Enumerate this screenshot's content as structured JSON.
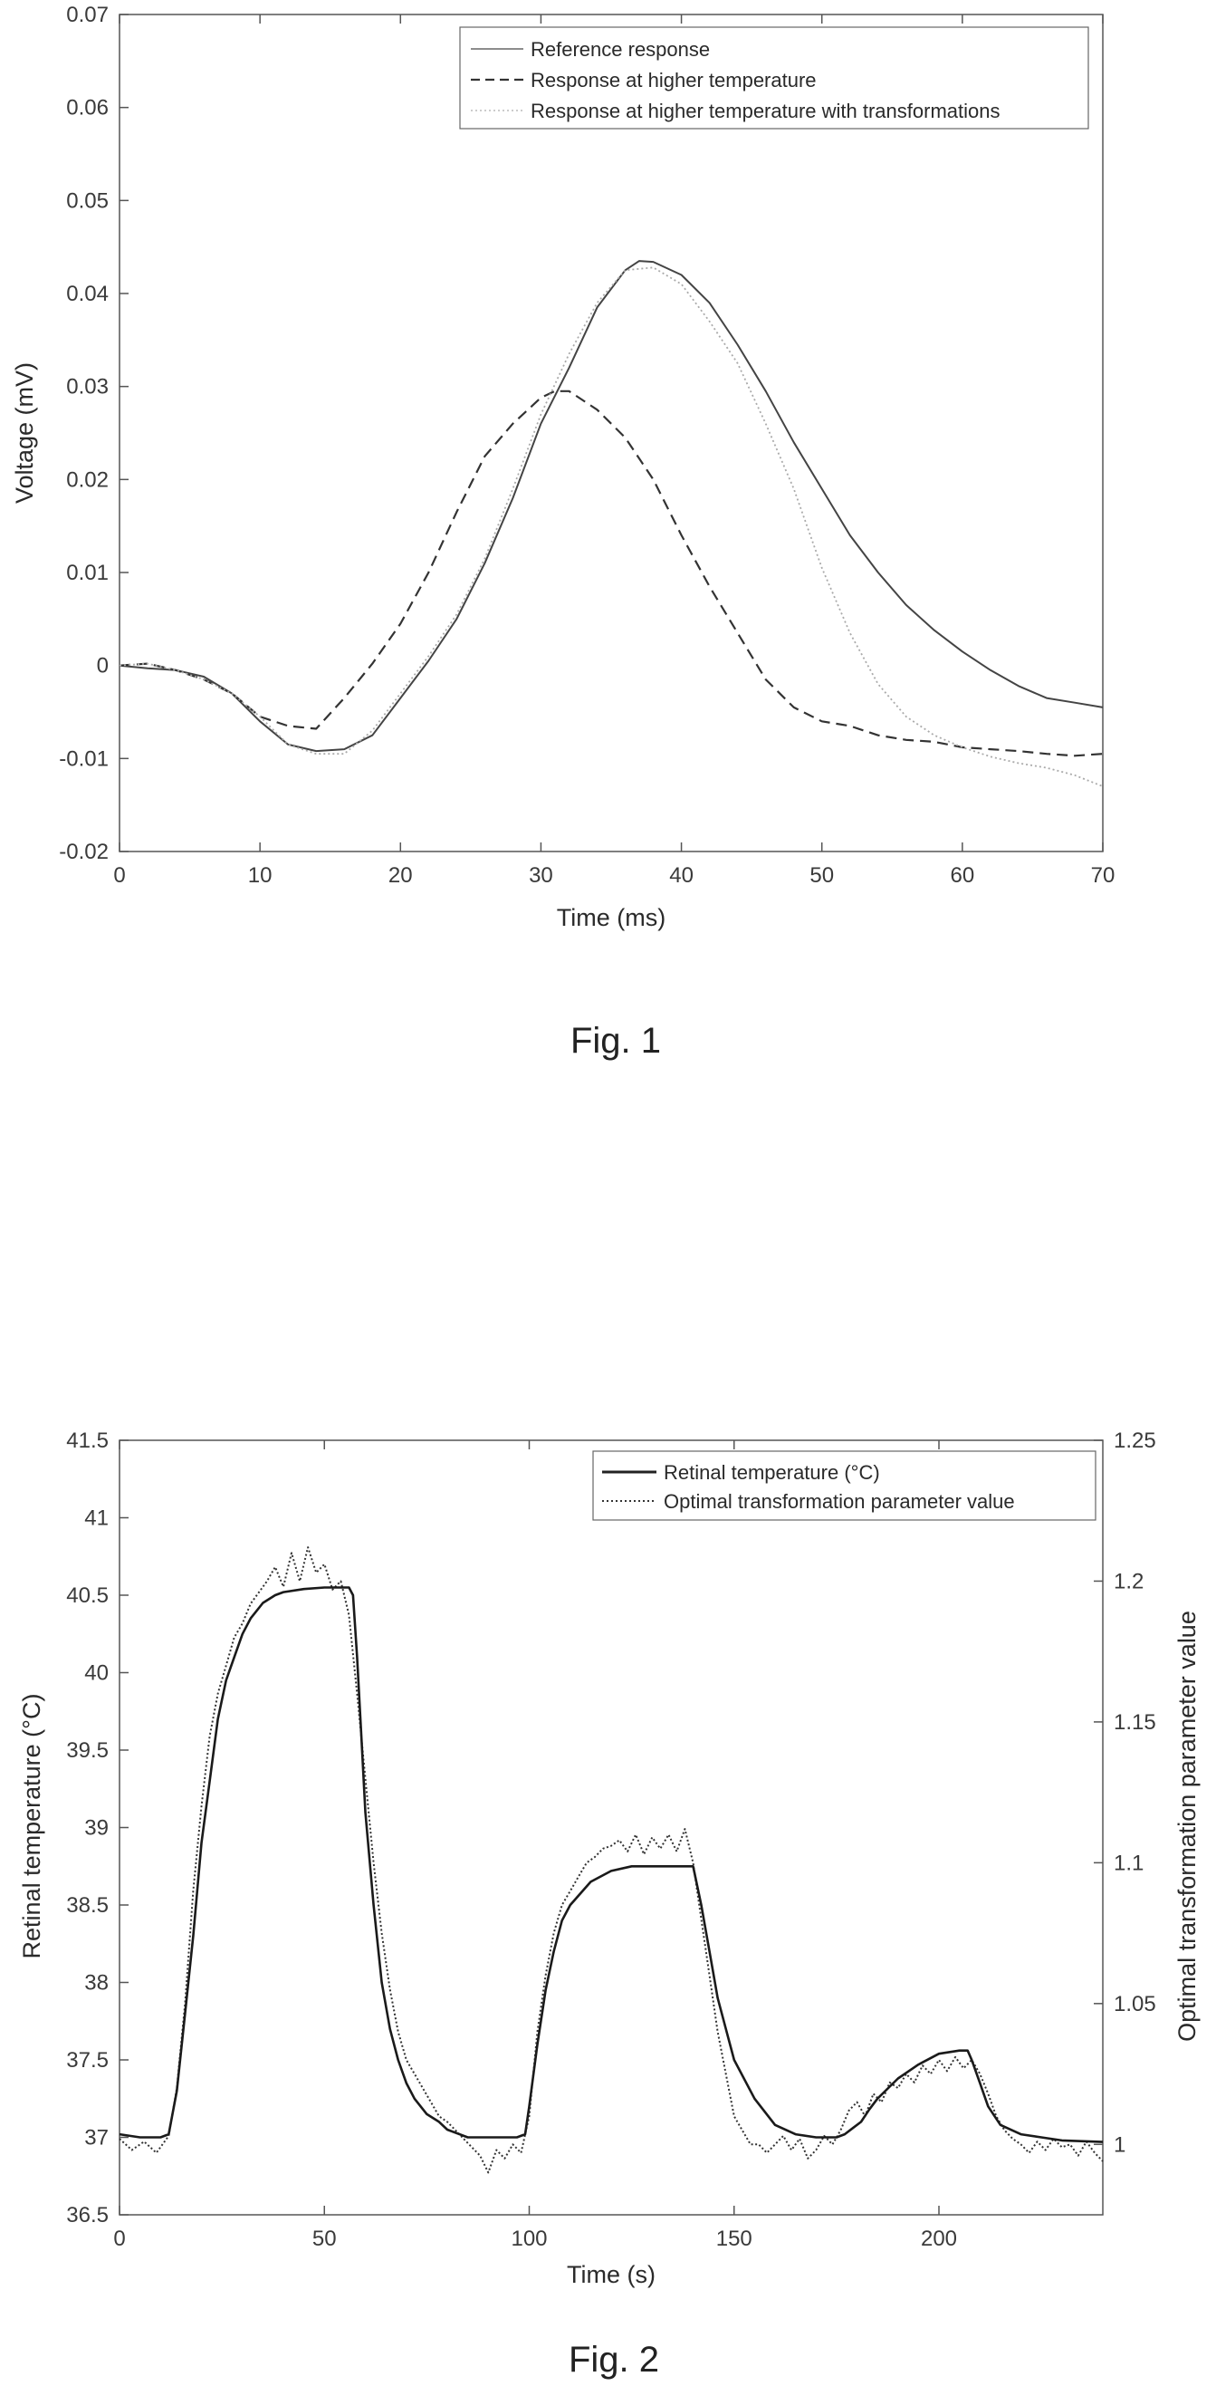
{
  "chart_data": [
    {
      "type": "line",
      "caption": "Fig. 1",
      "xlabel": "Time (ms)",
      "ylabel": "Voltage (mV)",
      "xlim": [
        0,
        70
      ],
      "ylim": [
        -0.02,
        0.07
      ],
      "xticks": [
        "0",
        "10",
        "20",
        "30",
        "40",
        "50",
        "60",
        "70"
      ],
      "yticks": [
        "-0.02",
        "-0.01",
        "0",
        "0.01",
        "0.02",
        "0.03",
        "0.04",
        "0.05",
        "0.06",
        "0.07"
      ],
      "legend_position": "top-right",
      "grid": false,
      "series": [
        {
          "name": "Reference response",
          "style": "solid",
          "x": [
            0,
            2,
            4,
            6,
            8,
            10,
            12,
            14,
            16,
            18,
            20,
            22,
            24,
            26,
            28,
            30,
            32,
            34,
            36,
            37,
            38,
            40,
            42,
            44,
            46,
            48,
            50,
            52,
            54,
            56,
            58,
            60,
            62,
            64,
            66,
            68,
            70
          ],
          "y": [
            0,
            -0.0003,
            -0.0005,
            -0.0012,
            -0.003,
            -0.006,
            -0.0085,
            -0.0092,
            -0.009,
            -0.0075,
            -0.0035,
            0.0005,
            0.005,
            0.011,
            0.018,
            0.026,
            0.032,
            0.0385,
            0.0425,
            0.0435,
            0.0434,
            0.042,
            0.039,
            0.0345,
            0.0295,
            0.024,
            0.019,
            0.014,
            0.01,
            0.0065,
            0.0038,
            0.0015,
            -0.0005,
            -0.0022,
            -0.0035,
            -0.004,
            -0.0045
          ]
        },
        {
          "name": "Response at higher temperature",
          "style": "dashed",
          "x": [
            0,
            2,
            4,
            6,
            8,
            10,
            12,
            14,
            16,
            18,
            20,
            22,
            24,
            26,
            28,
            30,
            31,
            32,
            34,
            36,
            38,
            40,
            42,
            44,
            46,
            48,
            50,
            52,
            54,
            56,
            58,
            60,
            62,
            64,
            66,
            68,
            70
          ],
          "y": [
            0,
            0.0002,
            -0.0005,
            -0.0015,
            -0.003,
            -0.0055,
            -0.0065,
            -0.0068,
            -0.0035,
            0.0002,
            0.0045,
            0.01,
            0.0165,
            0.0225,
            0.026,
            0.0288,
            0.0295,
            0.0295,
            0.0275,
            0.0245,
            0.02,
            0.014,
            0.0085,
            0.0035,
            -0.0015,
            -0.0045,
            -0.006,
            -0.0065,
            -0.0075,
            -0.008,
            -0.0082,
            -0.0088,
            -0.009,
            -0.0092,
            -0.0095,
            -0.0097,
            -0.0095
          ]
        },
        {
          "name": "Response at higher temperature with transformations",
          "style": "dotted",
          "x": [
            0,
            2,
            4,
            6,
            8,
            10,
            12,
            14,
            16,
            18,
            20,
            22,
            24,
            26,
            28,
            30,
            32,
            34,
            36,
            38,
            40,
            42,
            44,
            46,
            48,
            50,
            52,
            54,
            56,
            58,
            60,
            62,
            64,
            66,
            68,
            70
          ],
          "y": [
            0,
            0.0002,
            -0.0005,
            -0.0015,
            -0.003,
            -0.0055,
            -0.0085,
            -0.0095,
            -0.0095,
            -0.007,
            -0.003,
            0.001,
            0.0055,
            0.0115,
            0.019,
            0.027,
            0.0335,
            0.039,
            0.0425,
            0.0428,
            0.041,
            0.037,
            0.0325,
            0.026,
            0.019,
            0.0105,
            0.0035,
            -0.002,
            -0.0055,
            -0.0075,
            -0.0088,
            -0.0098,
            -0.0105,
            -0.011,
            -0.0118,
            -0.013
          ]
        }
      ]
    },
    {
      "type": "line",
      "caption": "Fig. 2",
      "xlabel": "Time (s)",
      "ylabel": "Retinal temperature (°C)",
      "y2label": "Optimal transformation parameter value",
      "xlim": [
        0,
        240
      ],
      "ylim": [
        36.5,
        41.5
      ],
      "y2lim": [
        0.975,
        1.25
      ],
      "xticks": [
        "0",
        "50",
        "100",
        "150",
        "200"
      ],
      "yticks": [
        "36.5",
        "37",
        "37.5",
        "38",
        "38.5",
        "39",
        "39.5",
        "40",
        "40.5",
        "41",
        "41.5"
      ],
      "y2ticks": [
        "1",
        "1.05",
        "1.1",
        "1.15",
        "1.2",
        "1.25"
      ],
      "legend_position": "top-right",
      "grid": false,
      "series": [
        {
          "name": "Retinal temperature (°C)",
          "style": "solid",
          "axis": "left",
          "x": [
            0,
            5,
            10,
            12,
            14,
            16,
            18,
            20,
            22,
            24,
            26,
            28,
            30,
            32,
            35,
            38,
            40,
            45,
            50,
            55,
            56,
            57,
            58,
            59,
            60,
            62,
            64,
            66,
            68,
            70,
            72,
            75,
            78,
            80,
            85,
            90,
            95,
            97,
            99,
            100,
            102,
            104,
            106,
            108,
            110,
            115,
            120,
            125,
            130,
            135,
            138,
            140,
            142,
            144,
            146,
            148,
            150,
            155,
            160,
            165,
            170,
            175,
            177,
            179,
            181,
            183,
            185,
            190,
            195,
            200,
            205,
            207,
            208,
            210,
            212,
            215,
            220,
            225,
            230,
            240
          ],
          "y": [
            37.02,
            37.0,
            37.0,
            37.02,
            37.3,
            37.8,
            38.3,
            38.9,
            39.3,
            39.7,
            39.95,
            40.1,
            40.25,
            40.35,
            40.45,
            40.5,
            40.52,
            40.54,
            40.55,
            40.55,
            40.55,
            40.5,
            40.1,
            39.6,
            39.1,
            38.5,
            38.0,
            37.7,
            37.5,
            37.35,
            37.25,
            37.15,
            37.1,
            37.05,
            37.0,
            37.0,
            37.0,
            37.0,
            37.02,
            37.2,
            37.6,
            37.95,
            38.2,
            38.4,
            38.5,
            38.65,
            38.72,
            38.75,
            38.75,
            38.75,
            38.75,
            38.75,
            38.5,
            38.2,
            37.9,
            37.7,
            37.5,
            37.25,
            37.08,
            37.02,
            37.0,
            37.0,
            37.02,
            37.06,
            37.1,
            37.18,
            37.25,
            37.38,
            37.47,
            37.54,
            37.56,
            37.56,
            37.5,
            37.35,
            37.2,
            37.08,
            37.02,
            37.0,
            36.98,
            36.97
          ]
        },
        {
          "name": "Optimal transformation parameter value",
          "style": "dotted",
          "axis": "right",
          "x": [
            0,
            3,
            6,
            9,
            12,
            14,
            16,
            18,
            20,
            22,
            24,
            26,
            28,
            30,
            32,
            34,
            36,
            38,
            40,
            42,
            44,
            46,
            48,
            50,
            52,
            54,
            56,
            58,
            60,
            62,
            64,
            66,
            68,
            70,
            72,
            74,
            76,
            78,
            80,
            82,
            84,
            86,
            88,
            90,
            92,
            94,
            96,
            98,
            100,
            102,
            104,
            106,
            108,
            110,
            112,
            114,
            116,
            118,
            120,
            122,
            124,
            126,
            128,
            130,
            132,
            134,
            136,
            138,
            140,
            142,
            144,
            146,
            148,
            150,
            152,
            154,
            156,
            158,
            160,
            162,
            164,
            166,
            168,
            170,
            172,
            174,
            176,
            178,
            180,
            182,
            184,
            186,
            188,
            190,
            192,
            194,
            196,
            198,
            200,
            202,
            204,
            206,
            208,
            210,
            212,
            214,
            216,
            218,
            220,
            222,
            224,
            226,
            228,
            230,
            232,
            234,
            236,
            238,
            240
          ],
          "y": [
            1.002,
            0.998,
            1.001,
            0.997,
            1.003,
            1.02,
            1.05,
            1.09,
            1.12,
            1.145,
            1.16,
            1.17,
            1.18,
            1.185,
            1.192,
            1.196,
            1.2,
            1.205,
            1.198,
            1.21,
            1.2,
            1.212,
            1.203,
            1.206,
            1.197,
            1.2,
            1.188,
            1.16,
            1.13,
            1.1,
            1.075,
            1.055,
            1.04,
            1.03,
            1.025,
            1.02,
            1.015,
            1.01,
            1.008,
            1.005,
            1.002,
            0.999,
            0.996,
            0.99,
            0.998,
            0.995,
            1.0,
            0.997,
            1.01,
            1.04,
            1.06,
            1.075,
            1.085,
            1.09,
            1.095,
            1.1,
            1.102,
            1.105,
            1.106,
            1.108,
            1.104,
            1.11,
            1.103,
            1.109,
            1.105,
            1.11,
            1.104,
            1.112,
            1.1,
            1.08,
            1.06,
            1.04,
            1.025,
            1.01,
            1.005,
            1.0,
            1.0,
            0.997,
            1.0,
            1.003,
            0.998,
            1.002,
            0.995,
            0.998,
            1.003,
            1.0,
            1.005,
            1.012,
            1.015,
            1.01,
            1.018,
            1.015,
            1.022,
            1.02,
            1.025,
            1.022,
            1.028,
            1.025,
            1.03,
            1.026,
            1.031,
            1.027,
            1.03,
            1.025,
            1.018,
            1.01,
            1.005,
            1.002,
            1.0,
            0.997,
            1.001,
            0.998,
            1.002,
            0.999,
            1.0,
            0.996,
            1.001,
            0.997,
            0.994
          ]
        }
      ]
    }
  ]
}
